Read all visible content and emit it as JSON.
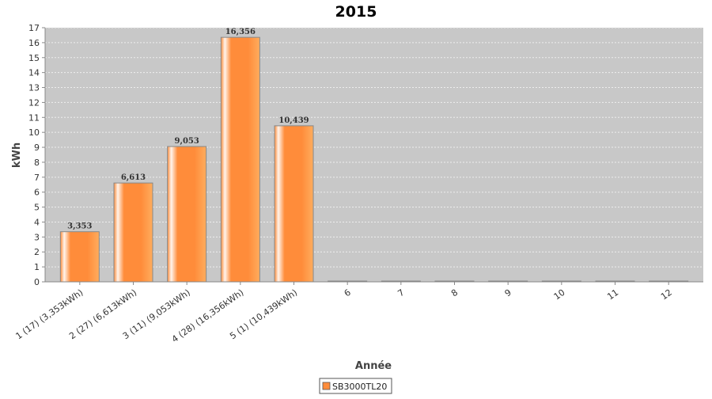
{
  "chart_data": {
    "type": "bar",
    "title": "2015",
    "xlabel": "Année",
    "ylabel": "kWh",
    "ylim": [
      0,
      17
    ],
    "yticks": [
      0,
      1,
      2,
      3,
      4,
      5,
      6,
      7,
      8,
      9,
      10,
      11,
      12,
      13,
      14,
      15,
      16,
      17
    ],
    "grid": true,
    "legend_position": "bottom",
    "categories": [
      "1 (17)  (3,353kWh)",
      "2 (27)  (6,613kWh)",
      "3 (11)  (9,053kWh)",
      "4 (28)  (16,356kWh)",
      "5 (1)  (10,439kWh)",
      "6",
      "7",
      "8",
      "9",
      "10",
      "11",
      "12"
    ],
    "series": [
      {
        "name": "SB3000TL20",
        "values": [
          3.353,
          6.613,
          9.053,
          16.356,
          10.439,
          0,
          0,
          0,
          0,
          0,
          0,
          0
        ],
        "labels": [
          "3,353",
          "6,613",
          "9,053",
          "16,356",
          "10,439",
          "",
          "",
          "",
          "",
          "",
          "",
          ""
        ]
      }
    ],
    "colors": {
      "bar": "#ff8c3a",
      "bar_highlight": "#fff4ec",
      "bar_light": "#ffad5e",
      "bar_border": "#888888",
      "plot_background": "#c8c8c8",
      "gridline": "#eeeeee"
    }
  }
}
